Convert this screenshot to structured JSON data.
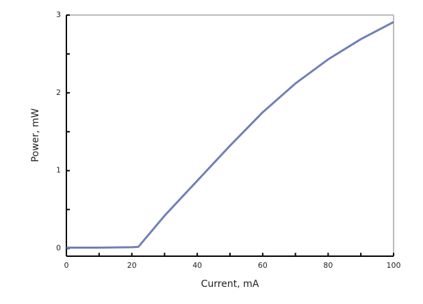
{
  "chart_data": {
    "type": "line",
    "x_label": "Current, mA",
    "y_label": "Power, mW",
    "x": [
      0,
      10,
      20,
      22,
      30,
      40,
      50,
      60,
      70,
      80,
      90,
      100
    ],
    "series": [
      {
        "name": "Power",
        "color": "#6f7fb8",
        "values": [
          0.01,
          0.01,
          0.015,
          0.02,
          0.42,
          0.87,
          1.32,
          1.75,
          2.12,
          2.43,
          2.69,
          2.91
        ]
      }
    ],
    "xlim": [
      0,
      100
    ],
    "ylim": [
      -0.1,
      3
    ],
    "xticks": [
      0,
      20,
      40,
      60,
      80,
      100
    ],
    "yticks": [
      0,
      1,
      2,
      3
    ],
    "xticks_minor": [
      10,
      30,
      50,
      70,
      90
    ],
    "yticks_minor": [
      0.5,
      1.5,
      2.5
    ],
    "grid": false
  }
}
